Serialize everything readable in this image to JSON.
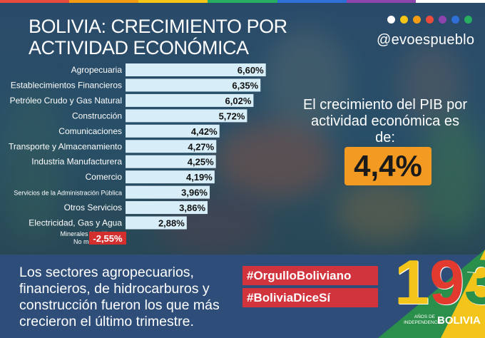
{
  "header": {
    "title_line1": "BOLIVIA: CRECIMIENTO POR",
    "title_line2": "ACTIVIDAD ECONÓMICA",
    "handle": "@evoespueblo"
  },
  "dots_colors": [
    "#ffffff",
    "#f5c518",
    "#f39c12",
    "#e74c3c",
    "#8e44ad",
    "#2e6fd8",
    "#27ae60"
  ],
  "stripe_colors": [
    "#e74c3c",
    "#f39c12",
    "#f5c518",
    "#27ae60",
    "#2e6fd8",
    "#8e44ad",
    "#ffffff"
  ],
  "chart_data": {
    "type": "bar",
    "orientation": "horizontal",
    "title": "BOLIVIA: CRECIMIENTO POR ACTIVIDAD ECONÓMICA",
    "categories": [
      "Agropecuaria",
      "Establecimientos Financieros",
      "Petróleo Crudo y Gas Natural",
      "Construcción",
      "Comunicaciones",
      "Transporte y Almacenamiento",
      "Industria Manufacturera",
      "Comercio",
      "Servicios de la Administración Pública",
      "Otros Servicios",
      "Electricidad, Gas y Agua",
      "Minerales Metálicos y No metálicos"
    ],
    "values": [
      6.6,
      6.35,
      6.02,
      5.72,
      4.42,
      4.27,
      4.25,
      4.19,
      3.96,
      3.86,
      2.88,
      -2.55
    ],
    "value_labels": [
      "6,60%",
      "6,35%",
      "6,02%",
      "5,72%",
      "4,42%",
      "4,27%",
      "4,25%",
      "4,19%",
      "3,96%",
      "3,86%",
      "2,88%",
      "-2,55%"
    ],
    "unit": "%",
    "positive_color": "#d7eef8",
    "negative_color": "#d32f2f",
    "grid": false,
    "legend": "none"
  },
  "pib": {
    "line1": "El crecimiento del PIB por",
    "line2": "actividad económica es de:",
    "value": "4,4%"
  },
  "bottom": {
    "text_line1": "Los sectores agropecuarios,",
    "text_line2": "financieros, de hidrocarburos y",
    "text_line3": "construcción fueron los que más",
    "text_line4": "crecieron el último trimestre.",
    "hashtag1": "#OrgulloBoliviano",
    "hashtag2": "#BoliviaDiceSí"
  },
  "logo": {
    "number": "193",
    "subtitle_line1": "AÑOS DE",
    "subtitle_line2": "INDEPENDENCIA",
    "country": "BOLIVIA"
  },
  "colors": {
    "accent_orange": "#f29a22",
    "hashtag_red": "#d2343d",
    "bottom_blue": "#2e4d78"
  }
}
